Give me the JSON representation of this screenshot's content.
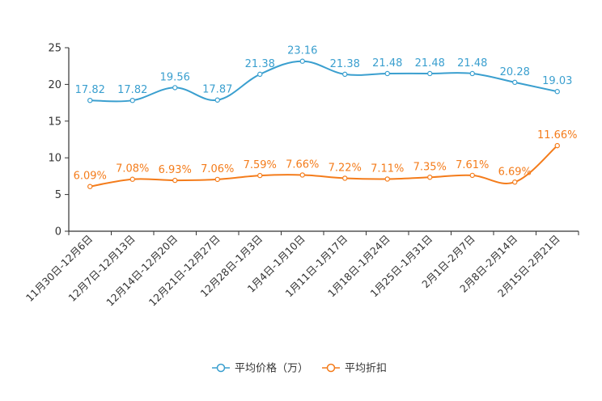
{
  "chart_data": {
    "type": "line",
    "title": "",
    "xlabel": "",
    "ylabel": "",
    "ylim": [
      0,
      25
    ],
    "yticks": [
      0,
      5,
      10,
      15,
      20,
      25
    ],
    "grid": false,
    "legend_position": "bottom-center",
    "categories": [
      "11月30日-12月6日",
      "12月7日-12月13日",
      "12月14日-12月20日",
      "12月21日-12月27日",
      "12月28日-1月3日",
      "1月4日-1月10日",
      "1月11日-1月17日",
      "1月18日-1月24日",
      "1月25日-1月31日",
      "2月1日-2月7日",
      "2月8日-2月14日",
      "2月15日-2月21日"
    ],
    "series": [
      {
        "name": "平均价格（万）",
        "color": "#3a9fcf",
        "values": [
          17.82,
          17.82,
          19.56,
          17.87,
          21.38,
          23.16,
          21.38,
          21.48,
          21.48,
          21.48,
          20.28,
          19.03
        ],
        "labels": [
          "17.82",
          "17.82",
          "19.56",
          "17.87",
          "21.38",
          "23.16",
          "21.38",
          "21.48",
          "21.48",
          "21.48",
          "20.28",
          "19.03"
        ]
      },
      {
        "name": "平均折扣",
        "color": "#f47c1b",
        "values": [
          6.09,
          7.08,
          6.93,
          7.06,
          7.59,
          7.66,
          7.22,
          7.11,
          7.35,
          7.61,
          6.69,
          11.66
        ],
        "labels": [
          "6.09%",
          "7.08%",
          "6.93%",
          "7.06%",
          "7.59%",
          "7.66%",
          "7.22%",
          "7.11%",
          "7.35%",
          "7.61%",
          "6.69%",
          "11.66%"
        ]
      }
    ]
  }
}
